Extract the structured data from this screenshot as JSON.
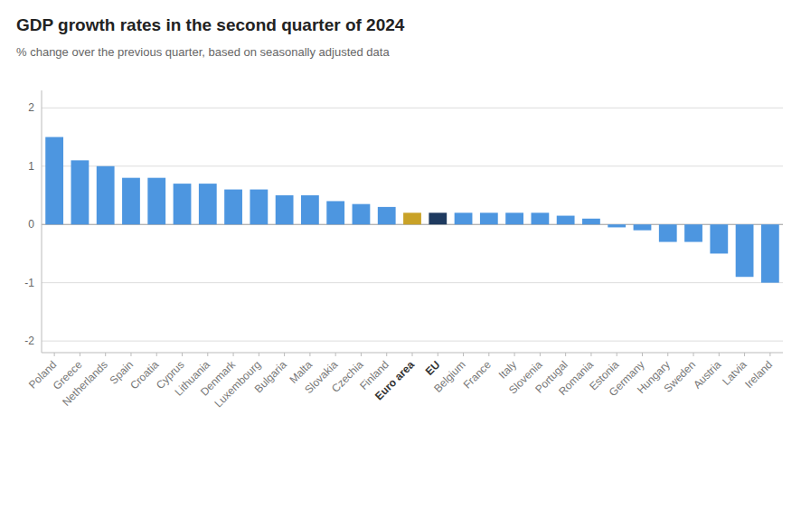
{
  "chart_data": {
    "type": "bar",
    "title": "GDP growth rates in the second quarter of 2024",
    "subtitle": "% change over the previous quarter, based on seasonally adjusted data",
    "categories": [
      "Poland",
      "Greece",
      "Netherlands",
      "Spain",
      "Croatia",
      "Cyprus",
      "Lithuania",
      "Denmark",
      "Luxembourg",
      "Bulgaria",
      "Malta",
      "Slovakia",
      "Czechia",
      "Finland",
      "Euro area",
      "EU",
      "Belgium",
      "France",
      "Italy",
      "Slovenia",
      "Portugal",
      "Romania",
      "Estonia",
      "Germany",
      "Hungary",
      "Sweden",
      "Austria",
      "Latvia",
      "Ireland"
    ],
    "values": [
      1.5,
      1.1,
      1.0,
      0.8,
      0.8,
      0.7,
      0.7,
      0.6,
      0.6,
      0.5,
      0.5,
      0.4,
      0.35,
      0.3,
      0.2,
      0.2,
      0.2,
      0.2,
      0.2,
      0.2,
      0.15,
      0.1,
      -0.05,
      -0.1,
      -0.3,
      -0.3,
      -0.5,
      -0.9,
      -1.0
    ],
    "colors": [
      "#4d96e0",
      "#4d96e0",
      "#4d96e0",
      "#4d96e0",
      "#4d96e0",
      "#4d96e0",
      "#4d96e0",
      "#4d96e0",
      "#4d96e0",
      "#4d96e0",
      "#4d96e0",
      "#4d96e0",
      "#4d96e0",
      "#4d96e0",
      "#c9a227",
      "#1e3a5f",
      "#4d96e0",
      "#4d96e0",
      "#4d96e0",
      "#4d96e0",
      "#4d96e0",
      "#4d96e0",
      "#4d96e0",
      "#4d96e0",
      "#4d96e0",
      "#4d96e0",
      "#4d96e0",
      "#4d96e0",
      "#4d96e0"
    ],
    "ylim": [
      -2.2,
      2.3
    ],
    "yticks": [
      -2,
      -1,
      0,
      1,
      2
    ],
    "grid": true
  }
}
